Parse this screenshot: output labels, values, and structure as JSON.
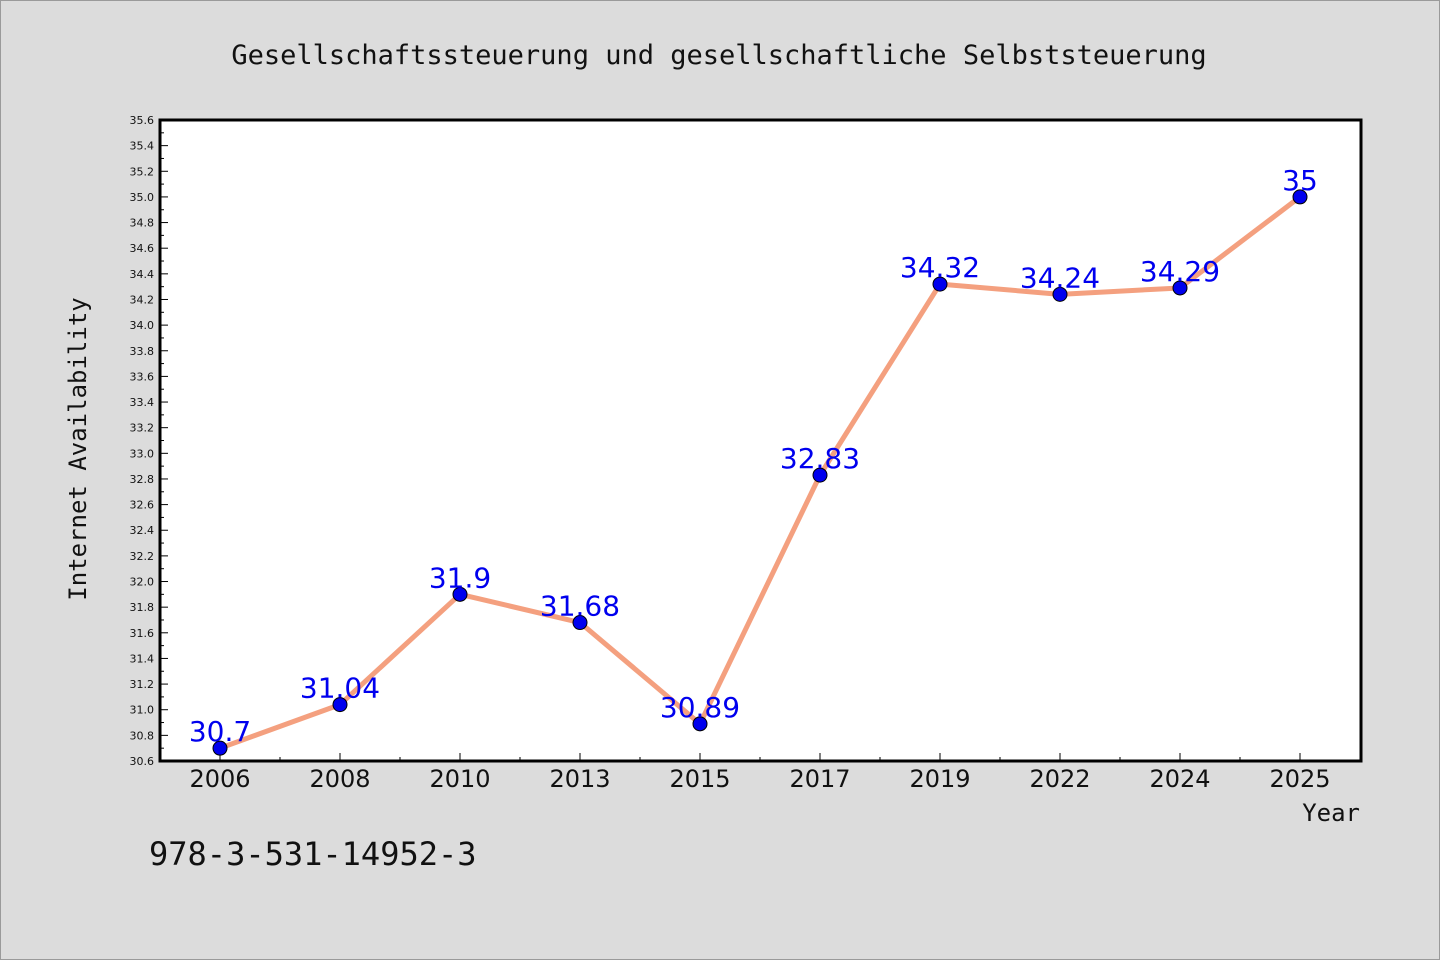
{
  "chart_data": {
    "type": "line",
    "title": "Gesellschaftssteuerung und gesellschaftliche Selbststeuerung",
    "xlabel": "Year",
    "ylabel": "Internet Availability",
    "categories": [
      "2006",
      "2008",
      "2010",
      "2013",
      "2015",
      "2017",
      "2019",
      "2022",
      "2024",
      "2025"
    ],
    "series": [
      {
        "values": [
          30.7,
          31.04,
          31.9,
          31.68,
          30.89,
          32.83,
          34.32,
          34.24,
          34.29,
          35
        ],
        "data_labels": [
          "30.7",
          "31.04",
          "31.9",
          "31.68",
          "30.89",
          "32.83",
          "34.32",
          "34.24",
          "34.29",
          "35"
        ],
        "line_color": "#f4a07f",
        "marker_color": "#0000ee"
      }
    ],
    "ylim": [
      30.6,
      35.6
    ],
    "y_tick_labels": [
      "30.6",
      "30.8",
      "31.0",
      "31.2",
      "31.4",
      "31.6",
      "31.8",
      "32.0",
      "32.2",
      "32.4",
      "32.6",
      "32.8",
      "33.0",
      "33.2",
      "33.4",
      "33.6",
      "33.8",
      "34.0",
      "34.2",
      "34.4",
      "34.6",
      "34.8",
      "35.0",
      "35.2",
      "35.4",
      "35.6"
    ],
    "grid": false,
    "legend": "none",
    "label_color": "#0000ee",
    "footnote": "978-3-531-14952-3"
  }
}
